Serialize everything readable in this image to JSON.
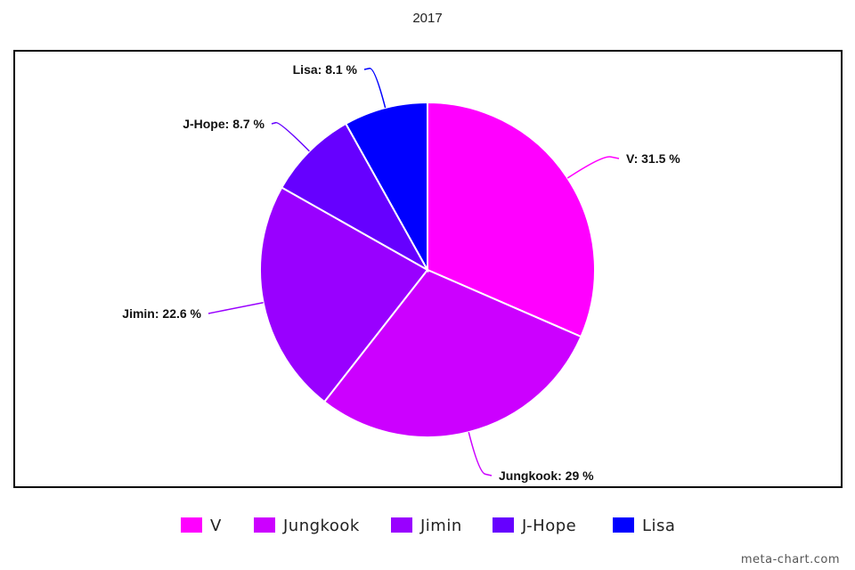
{
  "chart_data": {
    "type": "pie",
    "title": "2017",
    "slices": [
      {
        "label": "V",
        "value": 31.5,
        "label_text": "V: 31.5 %",
        "color": "#ff00ff"
      },
      {
        "label": "Jungkook",
        "value": 29,
        "label_text": "Jungkook: 29 %",
        "color": "#cc00ff"
      },
      {
        "label": "Jimin",
        "value": 22.6,
        "label_text": "Jimin: 22.6 %",
        "color": "#9900ff"
      },
      {
        "label": "J-Hope",
        "value": 8.7,
        "label_text": "J-Hope: 8.7 %",
        "color": "#6600ff"
      },
      {
        "label": "Lisa",
        "value": 8.1,
        "label_text": "Lisa: 8.1 %",
        "color": "#0000ff"
      }
    ],
    "legend_position": "bottom"
  },
  "watermark": "meta-chart.com"
}
